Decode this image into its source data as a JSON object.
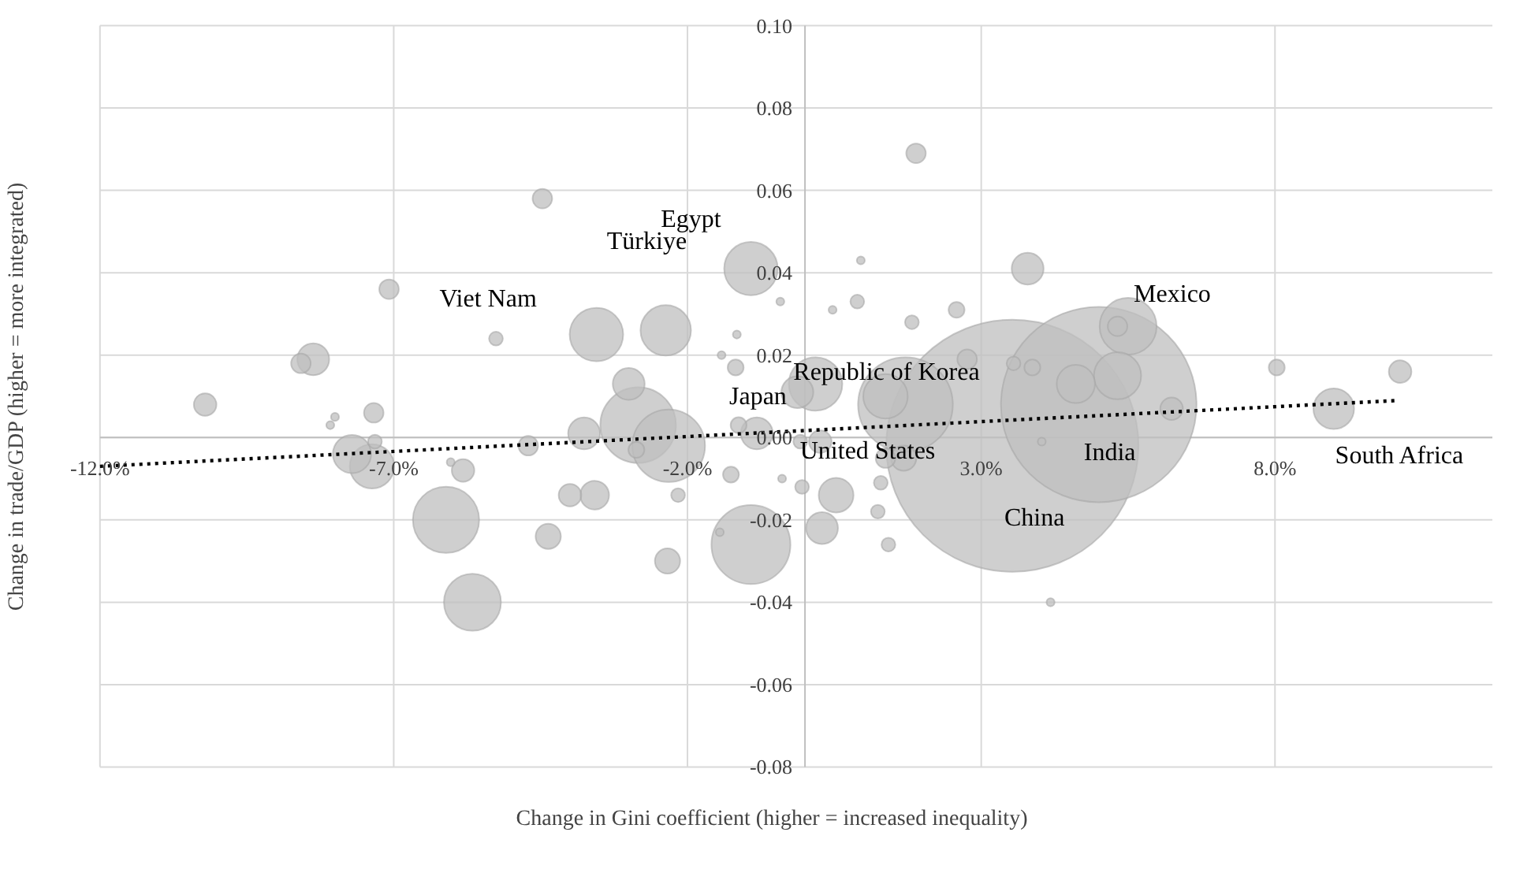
{
  "chart_data": {
    "type": "bubble",
    "xlabel": "Change in Gini coefficient (higher = increased inequality)",
    "ylabel": "Change in trade/GDP (higher = more integrated)",
    "xlim": [
      -12,
      11.7
    ],
    "ylim": [
      -0.08,
      0.1
    ],
    "xticks": [
      {
        "value": -12,
        "label": "-12.0%"
      },
      {
        "value": -7,
        "label": "-7.0%"
      },
      {
        "value": -2,
        "label": "-2.0%"
      },
      {
        "value": 3,
        "label": "3.0%"
      },
      {
        "value": 8,
        "label": "8.0%"
      }
    ],
    "yticks": [
      {
        "value": -0.08,
        "label": "-0.08"
      },
      {
        "value": -0.06,
        "label": "-0.06"
      },
      {
        "value": -0.04,
        "label": "-0.04"
      },
      {
        "value": -0.02,
        "label": "-0.02"
      },
      {
        "value": 0,
        "label": "0.00"
      },
      {
        "value": 0.02,
        "label": "0.02"
      },
      {
        "value": 0.04,
        "label": "0.04"
      },
      {
        "value": 0.06,
        "label": "0.06"
      },
      {
        "value": 0.08,
        "label": "0.08"
      },
      {
        "value": 0.1,
        "label": "0.10"
      }
    ],
    "grid": true,
    "series": [
      {
        "color": "#bfbfbf",
        "x": [
          -10.21,
          -8.58,
          -8.37,
          -8.0,
          -8.08,
          -7.34,
          -7.08,
          -7.71,
          -7.37,
          -7.32,
          -6.03,
          -5.82,
          -6.11,
          -5.66,
          -5.26,
          -4.71,
          -4.47,
          -4.0,
          -4.37,
          -3.76,
          -3.55,
          -3.58,
          -3.0,
          -2.84,
          -2.37,
          -2.32,
          -2.87,
          -2.16,
          -2.34,
          -0.92,
          -1.16,
          -1.42,
          -1.18,
          -0.42,
          -0.82,
          -1.13,
          -1.26,
          -1.45,
          -0.92,
          -0.39,
          -0.08,
          -0.05,
          0.26,
          0.18,
          -0.13,
          0.29,
          0.53,
          0.47,
          0.89,
          0.95,
          1.82,
          2.58,
          1.89,
          2.76,
          1.37,
          1.71,
          1.37,
          1.68,
          1.29,
          1.24,
          1.42,
          3.53,
          5.0,
          3.79,
          3.55,
          3.87,
          4.03,
          4.61,
          5.32,
          5.5,
          5.32,
          6.24,
          4.18,
          8.03,
          10.13,
          9.0
        ],
        "values": [
          0.008,
          0.018,
          0.019,
          0.005,
          0.003,
          0.006,
          0.036,
          -0.004,
          -0.007,
          -0.001,
          -0.006,
          -0.008,
          -0.02,
          -0.04,
          0.024,
          -0.002,
          0.058,
          -0.014,
          -0.024,
          0.001,
          0.025,
          -0.014,
          0.013,
          0.003,
          0.026,
          -0.002,
          -0.003,
          -0.014,
          -0.03,
          0.041,
          0.025,
          0.02,
          0.017,
          0.033,
          0.001,
          0.003,
          -0.009,
          -0.023,
          -0.026,
          -0.01,
          -0.001,
          -0.012,
          -0.001,
          0.013,
          0.011,
          -0.022,
          -0.014,
          0.031,
          0.033,
          0.043,
          0.028,
          0.031,
          0.069,
          0.019,
          0.01,
          0.008,
          -0.005,
          -0.005,
          -0.011,
          -0.018,
          -0.026,
          -0.002,
          0.008,
          0.041,
          0.018,
          0.017,
          -0.001,
          0.013,
          0.015,
          0.027,
          0.027,
          0.007,
          -0.04,
          0.017,
          0.016,
          0.007
        ],
        "sizes": [
          0.008,
          0.006,
          0.016,
          0.001,
          0.001,
          0.006,
          0.006,
          0.023,
          0.031,
          0.003,
          0.001,
          0.008,
          0.069,
          0.051,
          0.003,
          0.006,
          0.006,
          0.008,
          0.01,
          0.016,
          0.045,
          0.013,
          0.016,
          0.09,
          0.04,
          0.083,
          0.004,
          0.003,
          0.01,
          0.045,
          0.001,
          0.001,
          0.004,
          0.001,
          0.016,
          0.004,
          0.004,
          0.001,
          0.098,
          0.001,
          0.003,
          0.003,
          0.008,
          0.045,
          0.016,
          0.016,
          0.019,
          0.001,
          0.003,
          0.001,
          0.003,
          0.004,
          0.006,
          0.006,
          0.031,
          0.141,
          0.006,
          0.01,
          0.003,
          0.003,
          0.003,
          1,
          0.601,
          0.016,
          0.003,
          0.004,
          0.001,
          0.023,
          0.035,
          0.051,
          0.006,
          0.008,
          0.001,
          0.004,
          0.008,
          0.026
        ]
      },
      {
        "type": "line",
        "color": "#000000",
        "line_style": "dotted",
        "x": [
          -12,
          10.1
        ],
        "values": [
          -0.007,
          0.009
        ]
      }
    ],
    "annotations": [
      {
        "text": "Viet Nam",
        "x": -5.26,
        "y": 0.024
      },
      {
        "text": "Türkiye",
        "x": -2.37,
        "y": 0.026
      },
      {
        "text": "Egypt",
        "x": -0.92,
        "y": 0.041
      },
      {
        "text": "Republic of Korea",
        "x": 0.18,
        "y": 0.013
      },
      {
        "text": "Japan",
        "x": -0.13,
        "y": 0.011
      },
      {
        "text": "United States",
        "x": 1.71,
        "y": 0.008
      },
      {
        "text": "India",
        "x": 5.0,
        "y": 0.008
      },
      {
        "text": "China",
        "x": 3.53,
        "y": -0.002
      },
      {
        "text": "Mexico",
        "x": 5.5,
        "y": 0.027
      },
      {
        "text": "South Africa",
        "x": 9.0,
        "y": 0.007
      }
    ]
  }
}
